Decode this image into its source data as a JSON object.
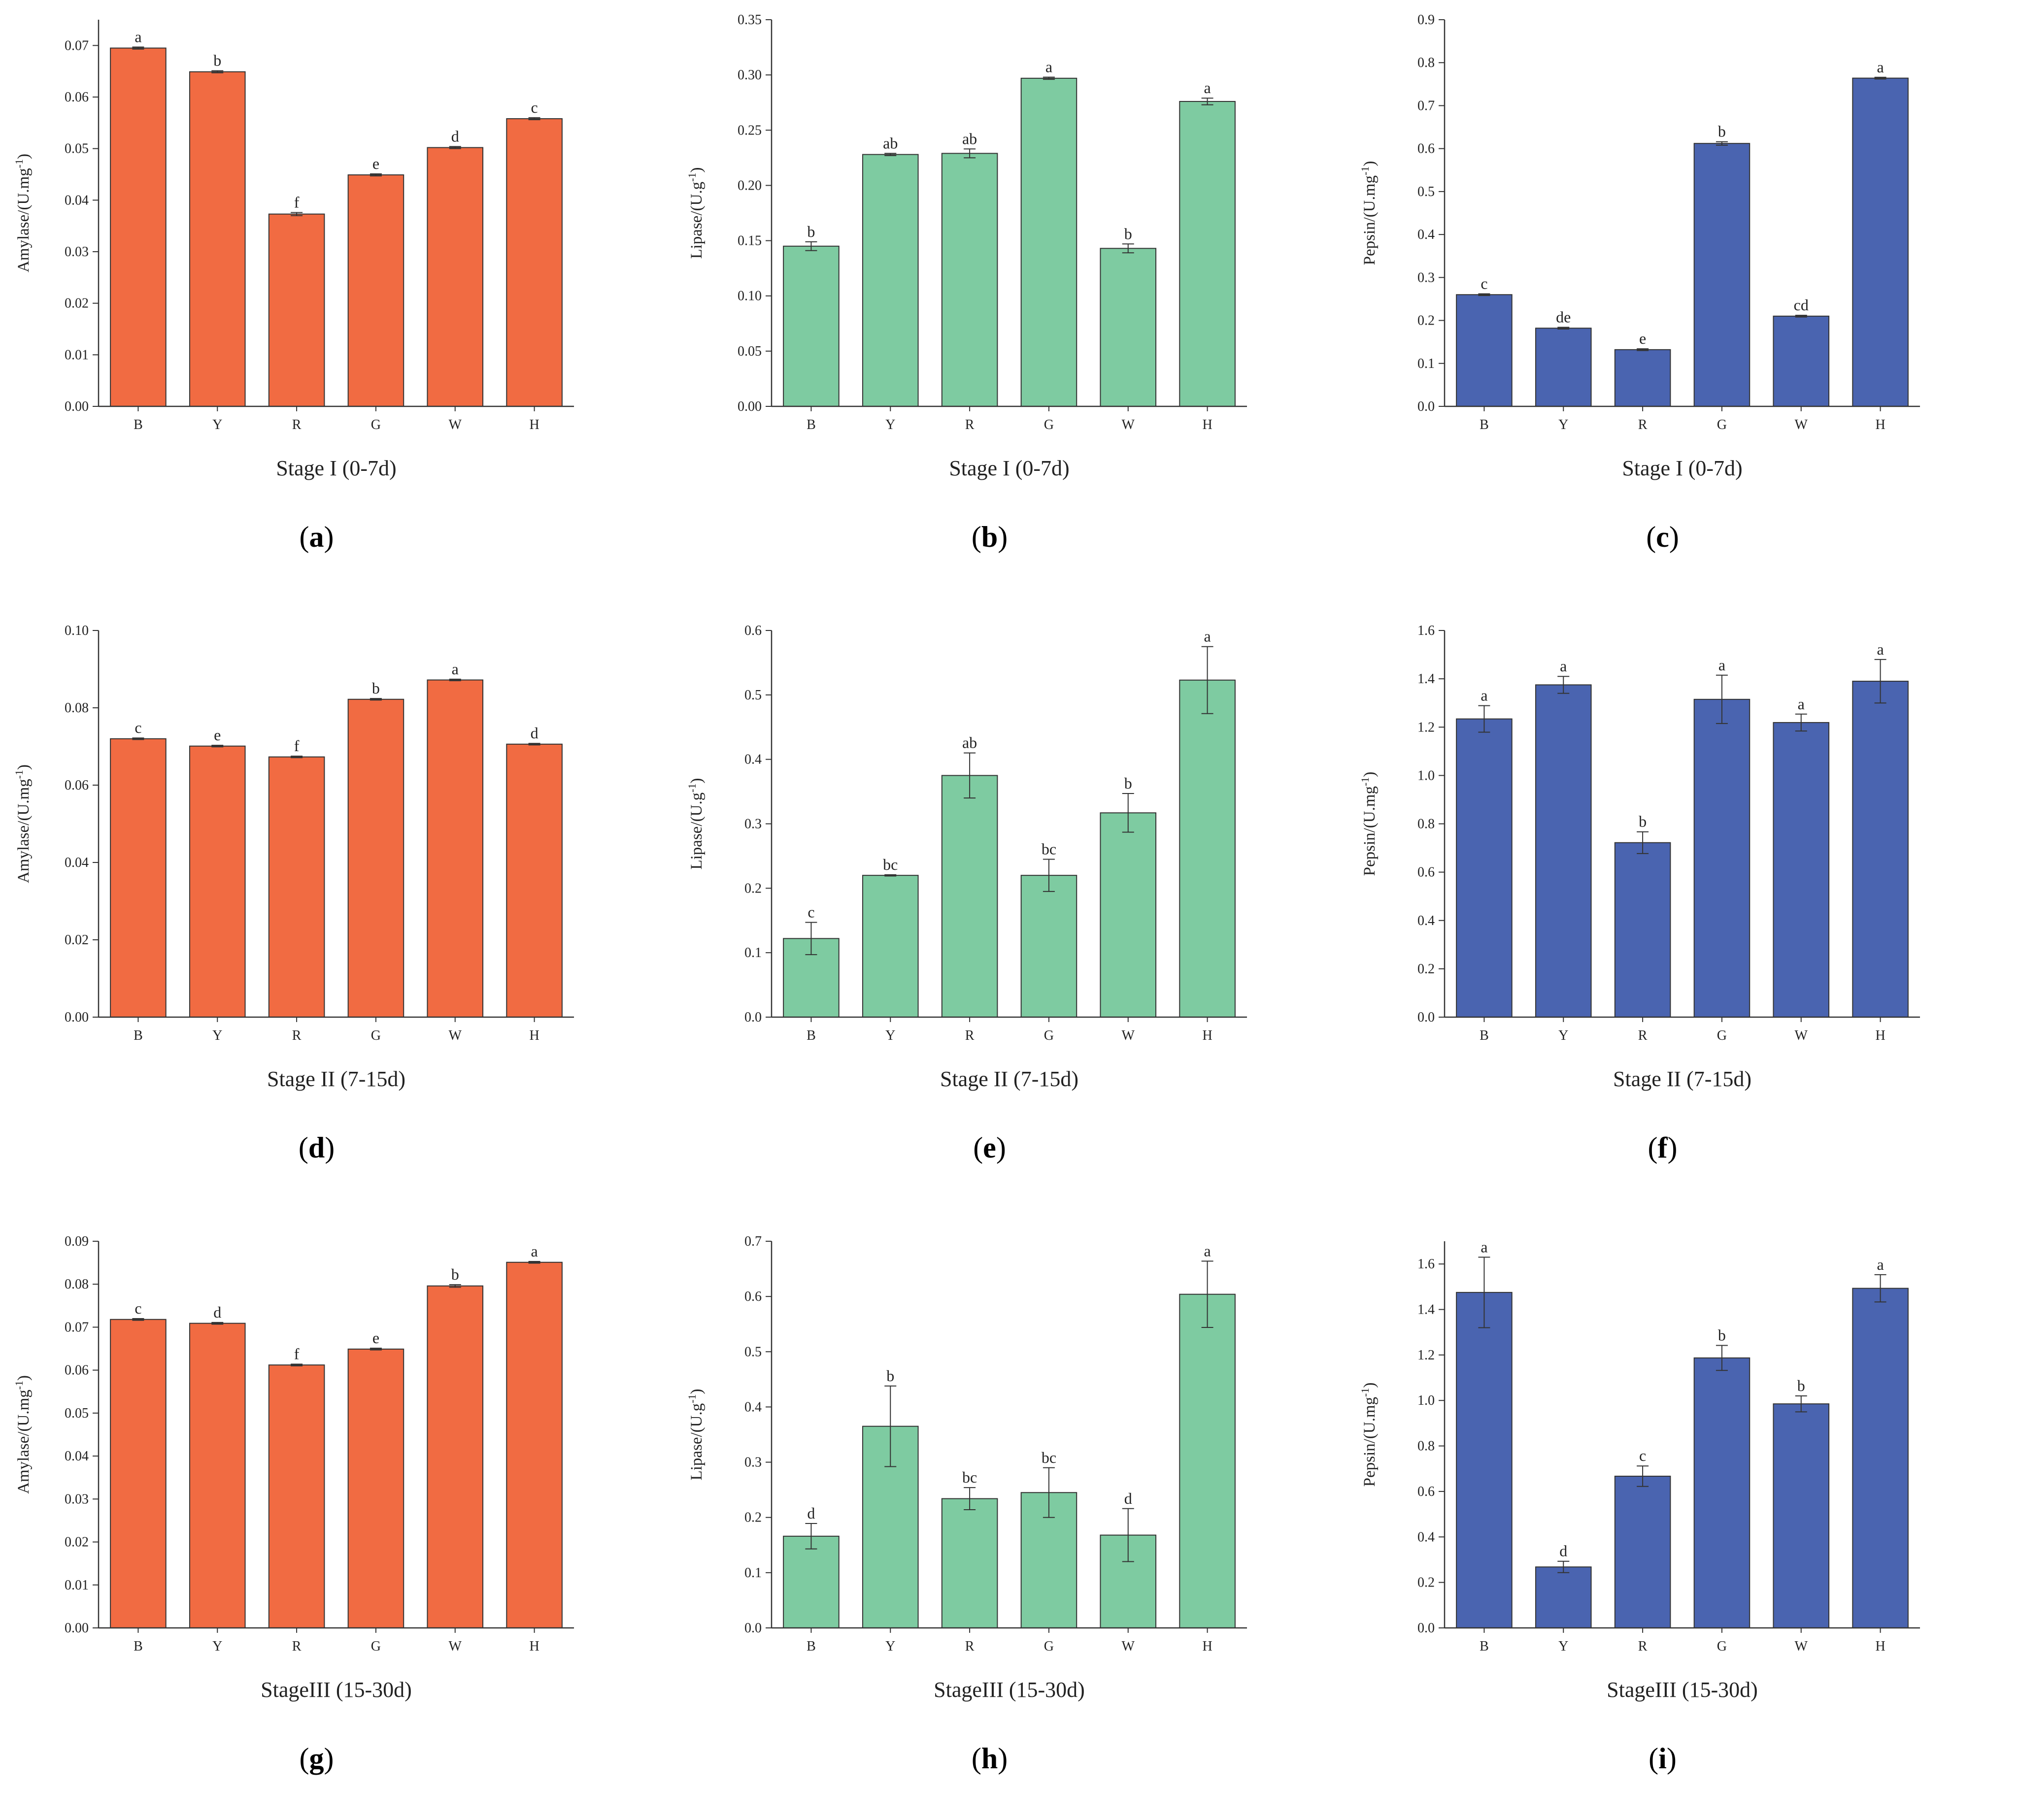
{
  "chart_data": [
    {
      "id": "a",
      "panel_label": "a",
      "type": "bar",
      "title": "",
      "xlabel": "Stage I (0-7d)",
      "ylabel": "Amylase/(U.mg-1)",
      "ylabel_main": "Amylase/(U.mg",
      "ylabel_sup": "-1",
      "ylabel_end": ")",
      "categories": [
        "B",
        "Y",
        "R",
        "G",
        "W",
        "H"
      ],
      "values": [
        0.0695,
        0.0649,
        0.0373,
        0.0449,
        0.0502,
        0.0558
      ],
      "errors": [
        0.0002,
        0.0002,
        0.0003,
        0.0002,
        0.0002,
        0.0002
      ],
      "significance": [
        "a",
        "b",
        "f",
        "e",
        "d",
        "c"
      ],
      "ylim": [
        0,
        0.075
      ],
      "yticks": [
        "0.00",
        "0.01",
        "0.02",
        "0.03",
        "0.04",
        "0.05",
        "0.06",
        "0.07"
      ],
      "color": "#F16B42"
    },
    {
      "id": "b",
      "panel_label": "b",
      "type": "bar",
      "title": "",
      "xlabel": "Stage I (0-7d)",
      "ylabel": "Lipase/(U.g-1)",
      "ylabel_main": "Lipase/(U.g",
      "ylabel_sup": "-1",
      "ylabel_end": ")",
      "categories": [
        "B",
        "Y",
        "R",
        "G",
        "W",
        "H"
      ],
      "values": [
        0.145,
        0.228,
        0.229,
        0.297,
        0.143,
        0.276
      ],
      "errors": [
        0.004,
        0.001,
        0.004,
        0.001,
        0.004,
        0.003
      ],
      "significance": [
        "b",
        "ab",
        "ab",
        "a",
        "b",
        "a"
      ],
      "ylim": [
        0,
        0.35
      ],
      "yticks": [
        "0.00",
        "0.05",
        "0.10",
        "0.15",
        "0.20",
        "0.25",
        "0.30",
        "0.35"
      ],
      "color": "#7ECBA1"
    },
    {
      "id": "c",
      "panel_label": "c",
      "type": "bar",
      "title": "",
      "xlabel": "Stage I (0-7d)",
      "ylabel": "Pepsin/(U.mg-1)",
      "ylabel_main": "Pepsin/(U.mg",
      "ylabel_sup": "-1",
      "ylabel_end": ")",
      "categories": [
        "B",
        "Y",
        "R",
        "G",
        "W",
        "H"
      ],
      "values": [
        0.26,
        0.182,
        0.132,
        0.612,
        0.21,
        0.764
      ],
      "errors": [
        0.002,
        0.002,
        0.002,
        0.004,
        0.002,
        0.002
      ],
      "significance": [
        "c",
        "de",
        "e",
        "b",
        "cd",
        "a"
      ],
      "ylim": [
        0,
        0.9
      ],
      "yticks": [
        "0.0",
        "0.1",
        "0.2",
        "0.3",
        "0.4",
        "0.5",
        "0.6",
        "0.7",
        "0.8",
        "0.9"
      ],
      "color": "#4A64B0"
    },
    {
      "id": "d",
      "panel_label": "d",
      "type": "bar",
      "title": "",
      "xlabel": "Stage II (7-15d)",
      "ylabel": "Amylase/(U.mg-1)",
      "ylabel_main": "Amylase/(U.mg",
      "ylabel_sup": "-1",
      "ylabel_end": ")",
      "categories": [
        "B",
        "Y",
        "R",
        "G",
        "W",
        "H"
      ],
      "values": [
        0.072,
        0.0701,
        0.0673,
        0.0822,
        0.0872,
        0.0706
      ],
      "errors": [
        0.0002,
        0.0002,
        0.0002,
        0.0002,
        0.0002,
        0.0002
      ],
      "significance": [
        "c",
        "e",
        "f",
        "b",
        "a",
        "d"
      ],
      "ylim": [
        0,
        0.1
      ],
      "yticks": [
        "0.00",
        "0.02",
        "0.04",
        "0.06",
        "0.08",
        "0.10"
      ],
      "color": "#F16B42"
    },
    {
      "id": "e",
      "panel_label": "e",
      "type": "bar",
      "title": "",
      "xlabel": "Stage II (7-15d)",
      "ylabel": "Lipase/(U.g-1)",
      "ylabel_main": "Lipase/(U.g",
      "ylabel_sup": "-1",
      "ylabel_end": ")",
      "categories": [
        "B",
        "Y",
        "R",
        "G",
        "W",
        "H"
      ],
      "values": [
        0.122,
        0.22,
        0.375,
        0.22,
        0.317,
        0.523
      ],
      "errors": [
        0.025,
        0.001,
        0.035,
        0.025,
        0.03,
        0.052
      ],
      "significance": [
        "c",
        "bc",
        "ab",
        "bc",
        "b",
        "a"
      ],
      "ylim": [
        0,
        0.6
      ],
      "yticks": [
        "0.0",
        "0.1",
        "0.2",
        "0.3",
        "0.4",
        "0.5",
        "0.6"
      ],
      "color": "#7ECBA1"
    },
    {
      "id": "f",
      "panel_label": "f",
      "type": "bar",
      "title": "",
      "xlabel": "Stage II (7-15d)",
      "ylabel": "Pepsin/(U.mg-1)",
      "ylabel_main": "Pepsin/(U.mg",
      "ylabel_sup": "-1",
      "ylabel_end": ")",
      "categories": [
        "B",
        "Y",
        "R",
        "G",
        "W",
        "H"
      ],
      "values": [
        1.234,
        1.375,
        0.722,
        1.315,
        1.219,
        1.39
      ],
      "errors": [
        0.055,
        0.035,
        0.045,
        0.1,
        0.035,
        0.09
      ],
      "significance": [
        "a",
        "a",
        "b",
        "a",
        "a",
        "a"
      ],
      "ylim": [
        0,
        1.6
      ],
      "yticks": [
        "0.0",
        "0.2",
        "0.4",
        "0.6",
        "0.8",
        "1.0",
        "1.2",
        "1.4",
        "1.6"
      ],
      "color": "#4A64B0"
    },
    {
      "id": "g",
      "panel_label": "g",
      "type": "bar",
      "title": "",
      "xlabel": "StageIII (15-30d)",
      "ylabel": "Amylase/(U.mg-1)",
      "ylabel_main": "Amylase/(U.mg",
      "ylabel_sup": "-1",
      "ylabel_end": ")",
      "categories": [
        "B",
        "Y",
        "R",
        "G",
        "W",
        "H"
      ],
      "values": [
        0.0718,
        0.0709,
        0.0612,
        0.0649,
        0.0796,
        0.0851
      ],
      "errors": [
        0.0002,
        0.0002,
        0.0002,
        0.0002,
        0.0003,
        0.0002
      ],
      "significance": [
        "c",
        "d",
        "f",
        "e",
        "b",
        "a"
      ],
      "ylim": [
        0,
        0.09
      ],
      "yticks": [
        "0.00",
        "0.01",
        "0.02",
        "0.03",
        "0.04",
        "0.05",
        "0.06",
        "0.07",
        "0.08",
        "0.09"
      ],
      "color": "#F16B42"
    },
    {
      "id": "h",
      "panel_label": "h",
      "type": "bar",
      "title": "",
      "xlabel": "StageIII (15-30d)",
      "ylabel": "Lipase/(U.g-1)",
      "ylabel_main": "Lipase/(U.g",
      "ylabel_sup": "-1",
      "ylabel_end": ")",
      "categories": [
        "B",
        "Y",
        "R",
        "G",
        "W",
        "H"
      ],
      "values": [
        0.166,
        0.365,
        0.234,
        0.245,
        0.168,
        0.604
      ],
      "errors": [
        0.023,
        0.073,
        0.02,
        0.045,
        0.048,
        0.06
      ],
      "significance": [
        "d",
        "b",
        "bc",
        "bc",
        "d",
        "a"
      ],
      "ylim": [
        0,
        0.7
      ],
      "yticks": [
        "0.0",
        "0.1",
        "0.2",
        "0.3",
        "0.4",
        "0.5",
        "0.6",
        "0.7"
      ],
      "color": "#7ECBA1"
    },
    {
      "id": "i",
      "panel_label": "i",
      "type": "bar",
      "title": "",
      "xlabel": "StageIII (15-30d)",
      "ylabel": "Pepsin/(U.mg-1)",
      "ylabel_main": "Pepsin/(U.mg",
      "ylabel_sup": "-1",
      "ylabel_end": ")",
      "categories": [
        "B",
        "Y",
        "R",
        "G",
        "W",
        "H"
      ],
      "values": [
        1.475,
        0.268,
        0.667,
        1.187,
        0.985,
        1.493
      ],
      "errors": [
        0.155,
        0.025,
        0.045,
        0.055,
        0.035,
        0.06
      ],
      "significance": [
        "a",
        "d",
        "c",
        "b",
        "b",
        "a"
      ],
      "ylim": [
        0,
        1.7
      ],
      "yticks": [
        "0.0",
        "0.2",
        "0.4",
        "0.6",
        "0.8",
        "1.0",
        "1.2",
        "1.4",
        "1.6"
      ],
      "color": "#4A64B0"
    }
  ]
}
